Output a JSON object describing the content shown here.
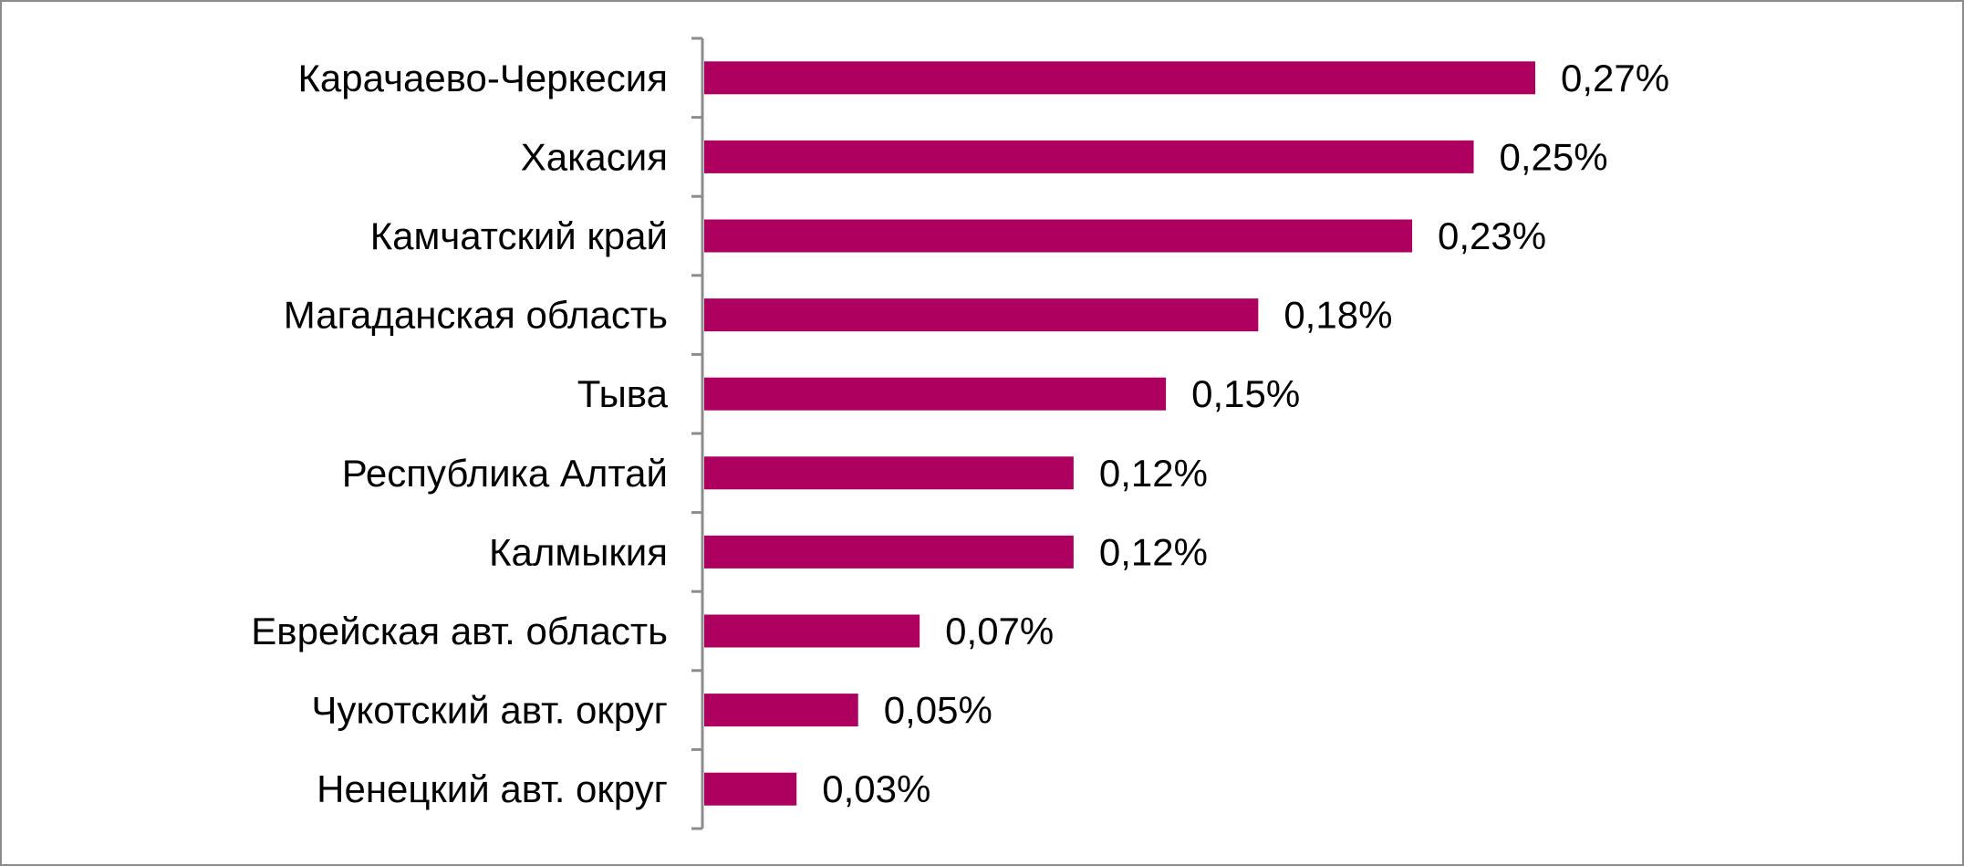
{
  "chart_data": {
    "type": "bar",
    "orientation": "horizontal",
    "categories": [
      "Карачаево-Черкесия",
      "Хакасия",
      "Камчатский край",
      "Магаданская область",
      "Тыва",
      "Республика Алтай",
      "Калмыкия",
      "Еврейская авт. область",
      "Чукотский авт. округ",
      "Ненецкий авт. округ"
    ],
    "values": [
      0.27,
      0.25,
      0.23,
      0.18,
      0.15,
      0.12,
      0.12,
      0.07,
      0.05,
      0.03
    ],
    "value_labels": [
      "0,27%",
      "0,25%",
      "0,23%",
      "0,18%",
      "0,15%",
      "0,12%",
      "0,12%",
      "0,07%",
      "0,05%",
      "0,03%"
    ],
    "xlim": [
      0,
      0.3
    ],
    "title": "",
    "xlabel": "",
    "ylabel": "",
    "grid": false,
    "legend": "none",
    "bar_color": "#ad005f",
    "axis_color": "#8c8c8c"
  }
}
